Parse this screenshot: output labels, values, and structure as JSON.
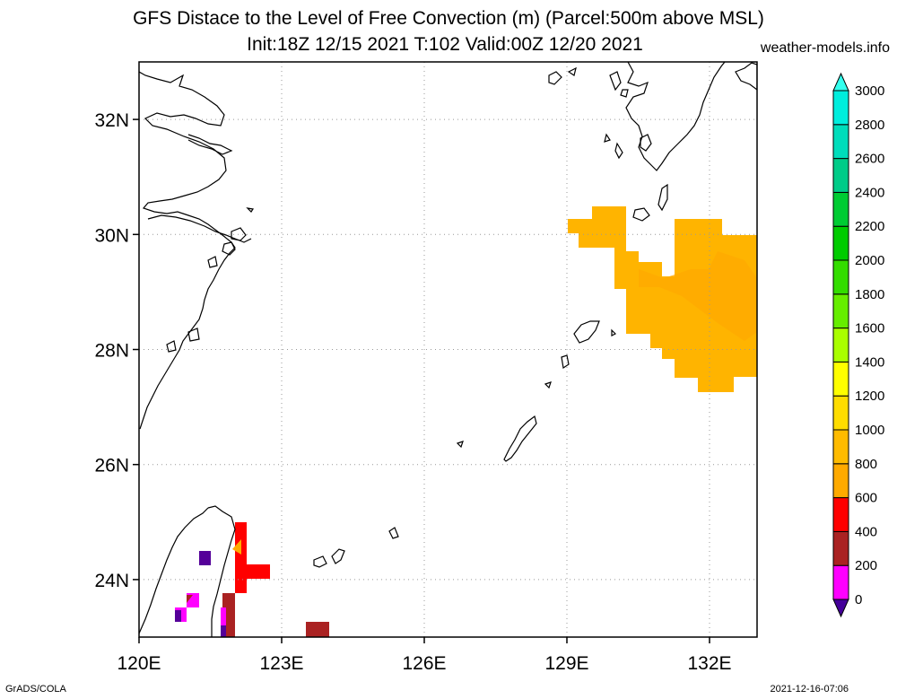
{
  "title": {
    "line1": "GFS Distace to the Level of Free Convection (m) (Parcel:500m above MSL)",
    "line2": "Init:18Z 12/15 2021 T:102 Valid:00Z 12/20 2021"
  },
  "source_label": "weather-models.info",
  "footer": {
    "left": "GrADS/COLA",
    "right": "2021-12-16-07:06"
  },
  "map": {
    "lat_ticks": [
      {
        "value": 32,
        "label": "32N"
      },
      {
        "value": 30,
        "label": "30N"
      },
      {
        "value": 28,
        "label": "28N"
      },
      {
        "value": 26,
        "label": "26N"
      },
      {
        "value": 24,
        "label": "24N"
      }
    ],
    "lon_ticks": [
      {
        "value": 120,
        "label": "120E"
      },
      {
        "value": 123,
        "label": "123E"
      },
      {
        "value": 126,
        "label": "126E"
      },
      {
        "value": 129,
        "label": "129E"
      },
      {
        "value": 132,
        "label": "132E"
      }
    ],
    "lon_range": [
      120,
      133
    ],
    "lat_range": [
      23,
      33
    ]
  },
  "colorbar": {
    "levels": [
      0,
      200,
      400,
      600,
      800,
      1000,
      1200,
      1400,
      1600,
      1800,
      2000,
      2200,
      2400,
      2600,
      2800,
      3000
    ],
    "colors": [
      "#440099",
      "#ff00ff",
      "#aa2222",
      "#ff0000",
      "#ffaa00",
      "#ffbb00",
      "#ffdd00",
      "#ffff00",
      "#aaff00",
      "#66ee00",
      "#33dd00",
      "#00cc00",
      "#00cc33",
      "#00cc88",
      "#00ddbb",
      "#00eedd",
      "#33ffee"
    ],
    "under_color": "#440099",
    "over_color": "#33ffee"
  },
  "field_colors": {
    "orange": "#ffb400",
    "orange_dark": "#ffaa00",
    "red": "#ff0000",
    "brown": "#aa2222",
    "magenta": "#ff00ff",
    "purple": "#550099"
  }
}
